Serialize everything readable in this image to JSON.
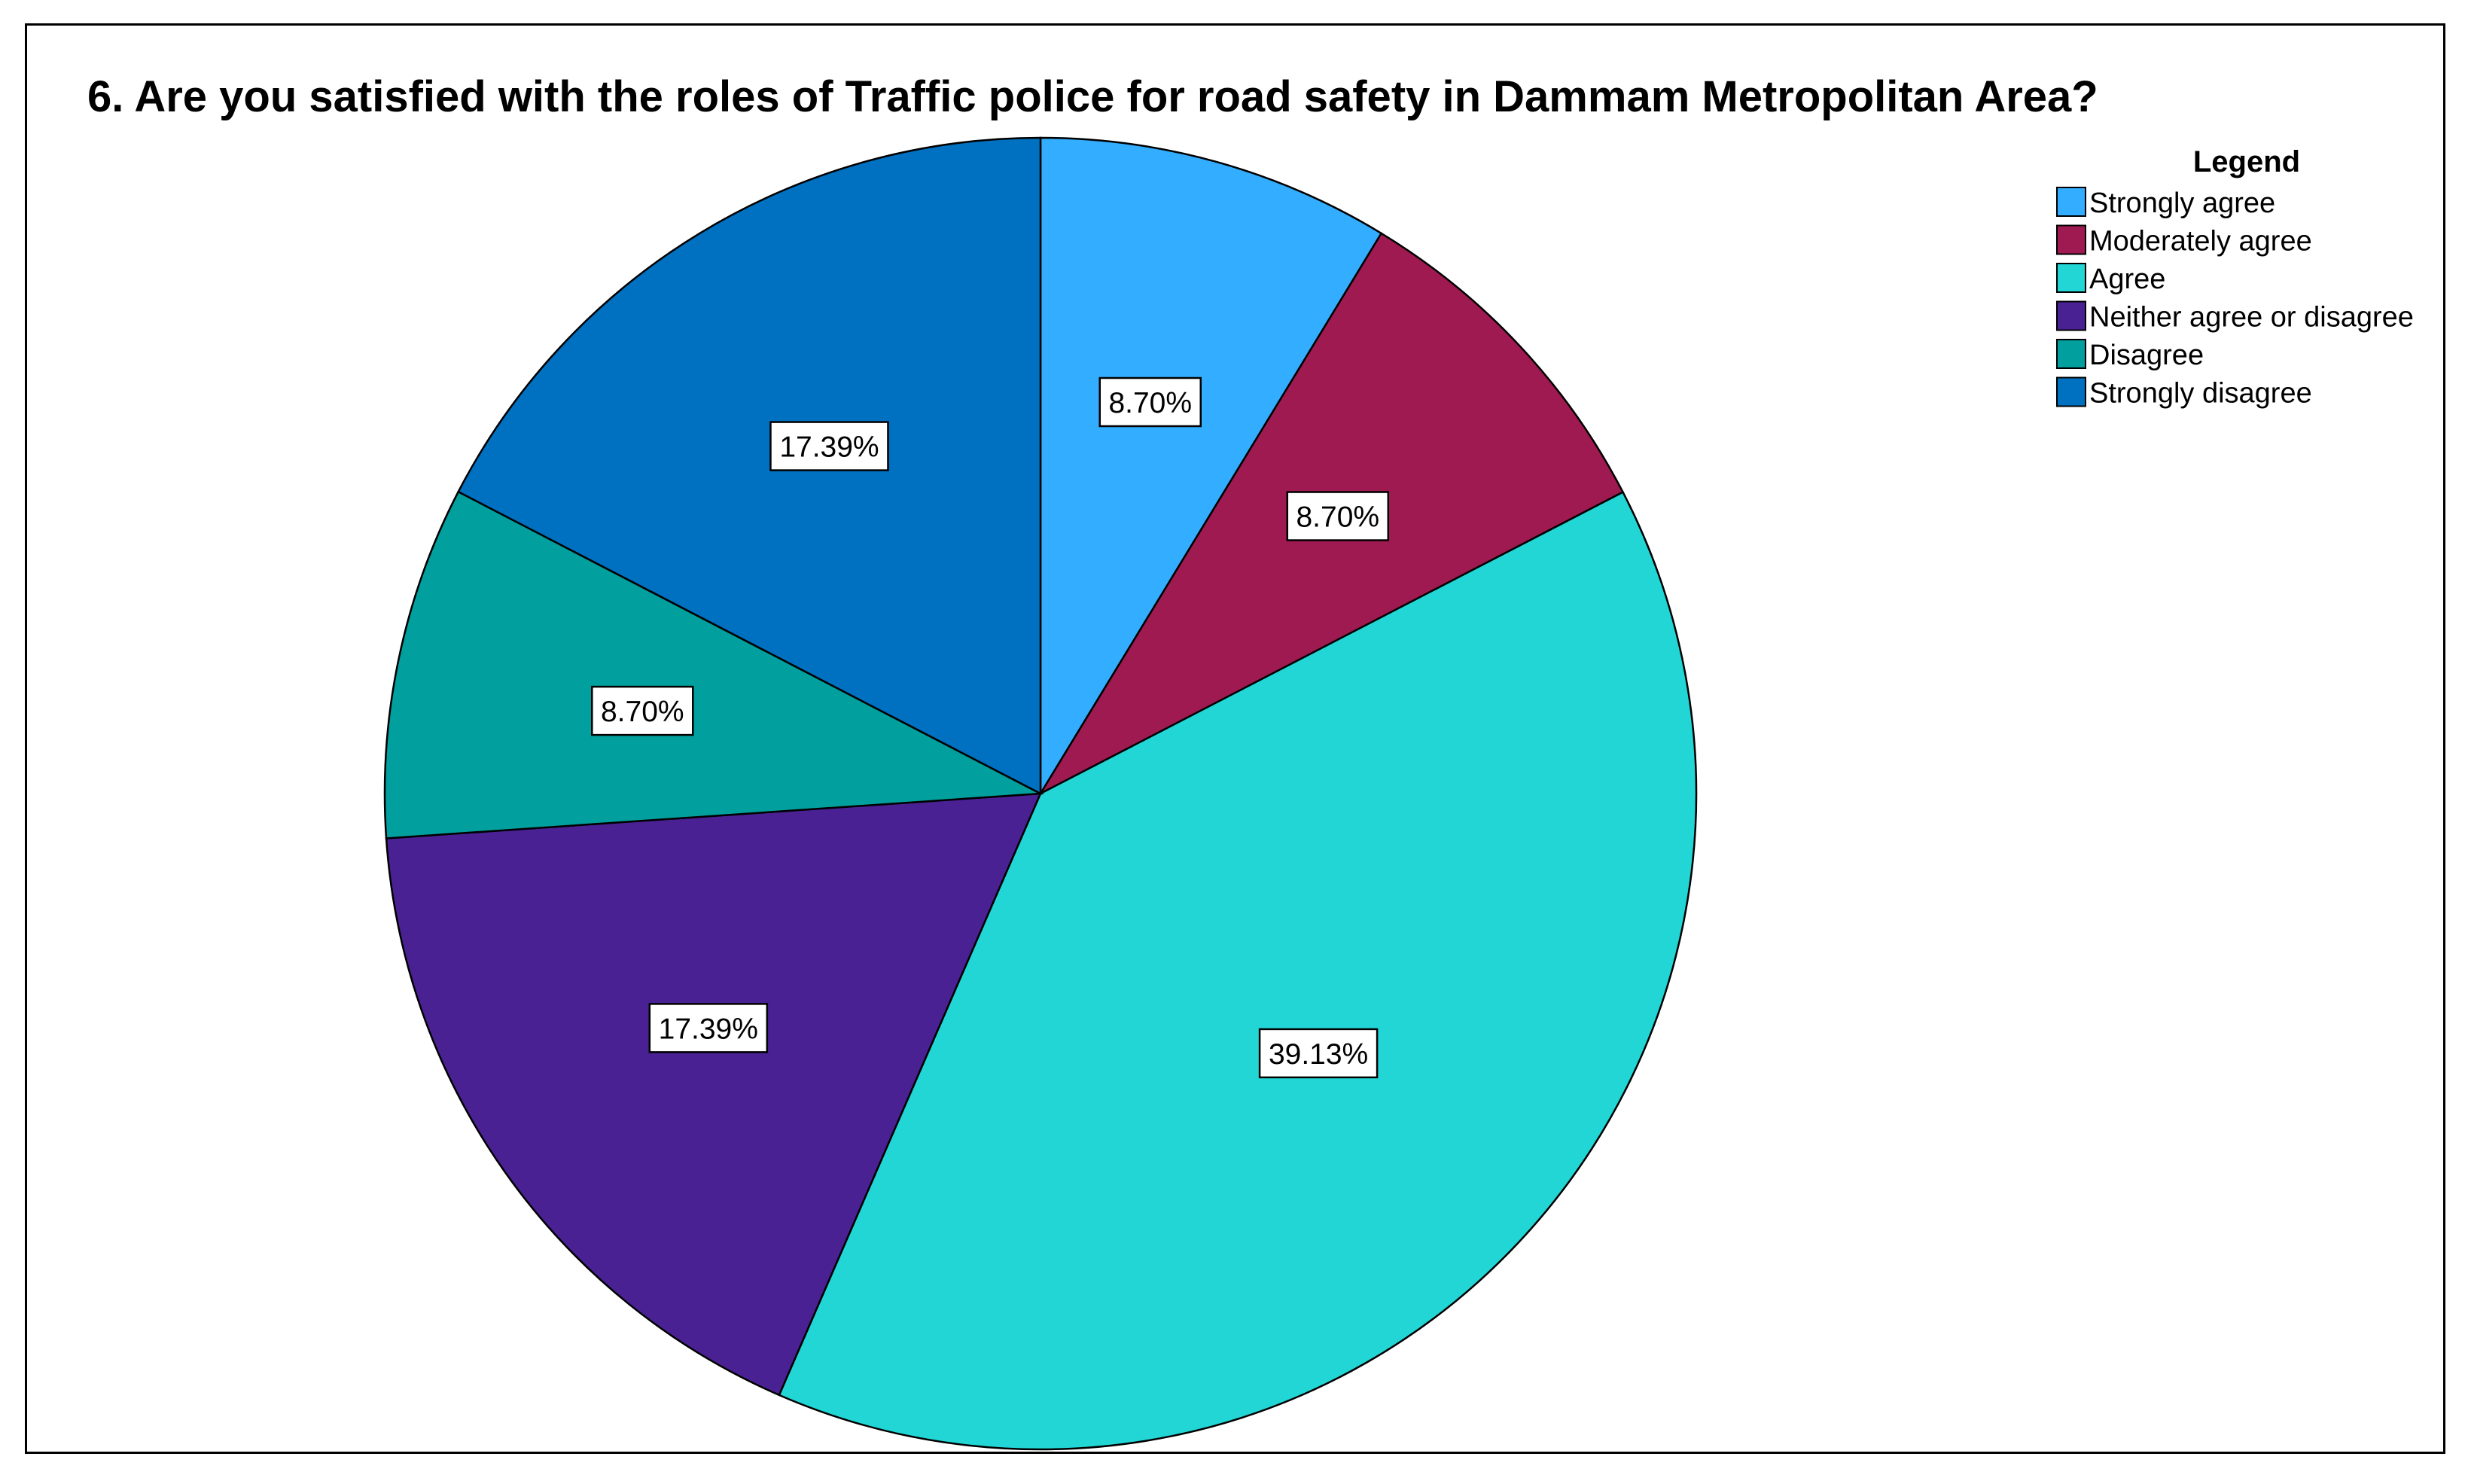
{
  "chart_data": {
    "type": "pie",
    "title": "6. Are you satisfied with the roles of Traffic police for road safety in Dammam Metropolitan Area?",
    "legend_title": "Legend",
    "legend_position": "top-right",
    "start_angle_deg": 0,
    "direction": "clockwise",
    "slices": [
      {
        "label": "Strongly agree",
        "value": 8.7,
        "display": "8.70%",
        "color": "#33adff"
      },
      {
        "label": "Moderately agree",
        "value": 8.7,
        "display": "8.70%",
        "color": "#a01a52"
      },
      {
        "label": "Agree",
        "value": 39.13,
        "display": "39.13%",
        "color": "#22d6d6"
      },
      {
        "label": "Neither agree or disagree",
        "value": 17.39,
        "display": "17.39%",
        "color": "#4a2192"
      },
      {
        "label": "Disagree",
        "value": 8.7,
        "display": "8.70%",
        "color": "#019f9e"
      },
      {
        "label": "Strongly disagree",
        "value": 17.39,
        "display": "17.39%",
        "color": "#0070c0"
      }
    ]
  }
}
